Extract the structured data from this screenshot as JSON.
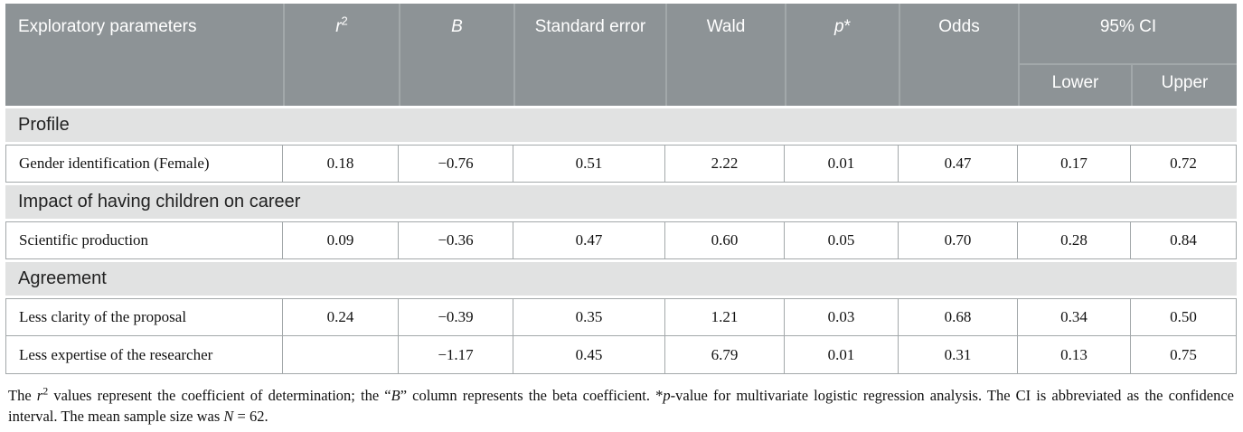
{
  "colors": {
    "header_bg": "#8d9396",
    "header_divider": "#a2a8aa",
    "section_bg": "#e1e2e2",
    "cell_border": "#a3a8aa",
    "header_text": "#ffffff",
    "body_text": "#111111"
  },
  "table": {
    "header": {
      "parameters": "Exploratory parameters",
      "r_base": "r",
      "r_sup": "2",
      "b": "B",
      "std_error": "Standard error",
      "wald": "Wald",
      "p_base": "p",
      "p_star": "*",
      "odds": "Odds",
      "ci": "95% CI",
      "ci_lower": "Lower",
      "ci_upper": "Upper"
    },
    "rows": [
      {
        "type": "section",
        "label": "Profile"
      },
      {
        "type": "data",
        "label": "Gender identification (Female)",
        "values": [
          "0.18",
          "−0.76",
          "0.51",
          "2.22",
          "0.01",
          "0.47",
          "0.17",
          "0.72"
        ]
      },
      {
        "type": "section",
        "label": "Impact of having children on career"
      },
      {
        "type": "data",
        "label": "Scientific production",
        "values": [
          "0.09",
          "−0.36",
          "0.47",
          "0.60",
          "0.05",
          "0.70",
          "0.28",
          "0.84"
        ]
      },
      {
        "type": "section",
        "label": "Agreement"
      },
      {
        "type": "data",
        "label": "Less clarity of the proposal",
        "values": [
          "0.24",
          "−0.39",
          "0.35",
          "1.21",
          "0.03",
          "0.68",
          "0.34",
          "0.50"
        ]
      },
      {
        "type": "data",
        "label": "Less expertise of the researcher",
        "values": [
          "",
          "−1.17",
          "0.45",
          "6.79",
          "0.01",
          "0.31",
          "0.13",
          "0.75"
        ]
      }
    ]
  },
  "footnote": {
    "segments": [
      {
        "text": "The ",
        "style": "normal"
      },
      {
        "text": "r",
        "style": "italic"
      },
      {
        "text": "2",
        "style": "sup"
      },
      {
        "text": " values represent the coefficient of determination; the “",
        "style": "normal"
      },
      {
        "text": "B",
        "style": "italic"
      },
      {
        "text": "” column represents the beta coefficient. *",
        "style": "normal"
      },
      {
        "text": "p",
        "style": "italic"
      },
      {
        "text": "-value for multivariate logistic regression analysis. The CI is abbreviated as the confidence interval. The mean sample size was ",
        "style": "normal"
      },
      {
        "text": "N",
        "style": "italic"
      },
      {
        "text": " = 62.",
        "style": "normal"
      }
    ]
  }
}
